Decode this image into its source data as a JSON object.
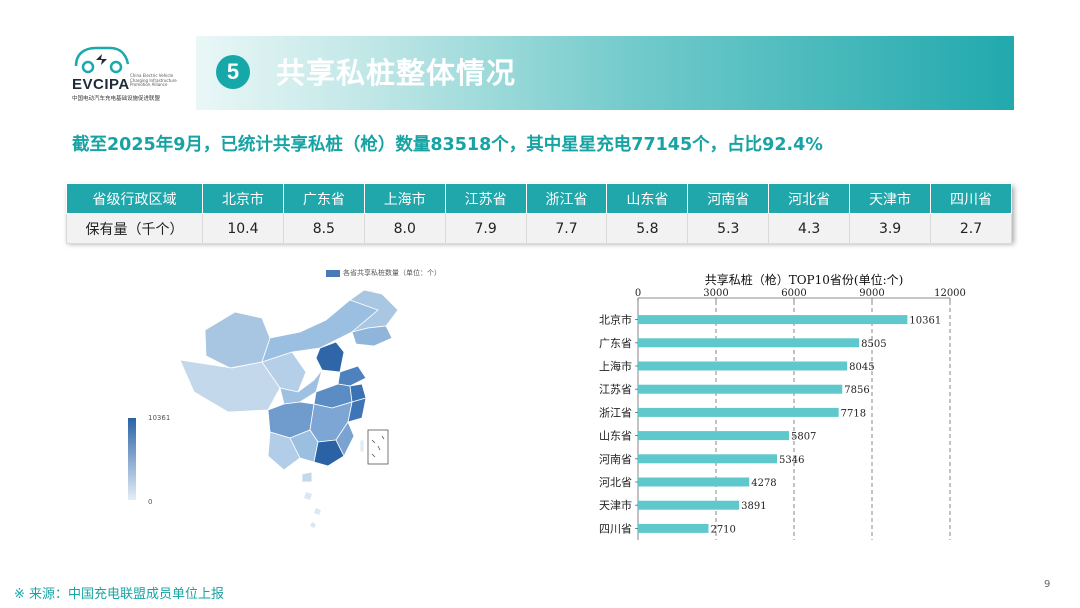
{
  "logo": {
    "brand": "EVCIPA",
    "tagline": "中国电动汽车充电基础设施促进联盟",
    "tagline_en": "China Electric Vehicle Charging Infrastructure Promotion Alliance"
  },
  "section": {
    "number": "5",
    "title": "共享私桩整体情况"
  },
  "headline": "截至2025年9月，已统计共享私桩（枪）数量83518个，其中星星充电77145个，占比92.4%",
  "table": {
    "row_header_1": "省级行政区域",
    "row_header_2": "保有量（千个）",
    "provinces": [
      "北京市",
      "广东省",
      "上海市",
      "江苏省",
      "浙江省",
      "山东省",
      "河南省",
      "河北省",
      "天津市",
      "四川省"
    ],
    "values": [
      "10.4",
      "8.5",
      "8.0",
      "7.9",
      "7.7",
      "5.8",
      "5.3",
      "4.3",
      "3.9",
      "2.7"
    ]
  },
  "map": {
    "legend_label": "各省共享私桩数量（单位：个）",
    "scale_max": "10361",
    "scale_min": "0"
  },
  "chart_data": {
    "type": "bar",
    "orientation": "horizontal",
    "title": "共享私桩（枪）TOP10省份(单位:个)",
    "categories": [
      "北京市",
      "广东省",
      "上海市",
      "江苏省",
      "浙江省",
      "山东省",
      "河南省",
      "河北省",
      "天津市",
      "四川省"
    ],
    "values": [
      10361,
      8505,
      8045,
      7856,
      7718,
      5807,
      5346,
      4278,
      3891,
      2710
    ],
    "xlim": [
      0,
      12000
    ],
    "ticks": [
      "0",
      "3000",
      "6000",
      "9000",
      "12000"
    ],
    "bar_color": "#5ec8cc",
    "grid": "dashed vertical"
  },
  "footer": {
    "source": "※  来源：中国充电联盟成员单位上报",
    "page": "9"
  }
}
